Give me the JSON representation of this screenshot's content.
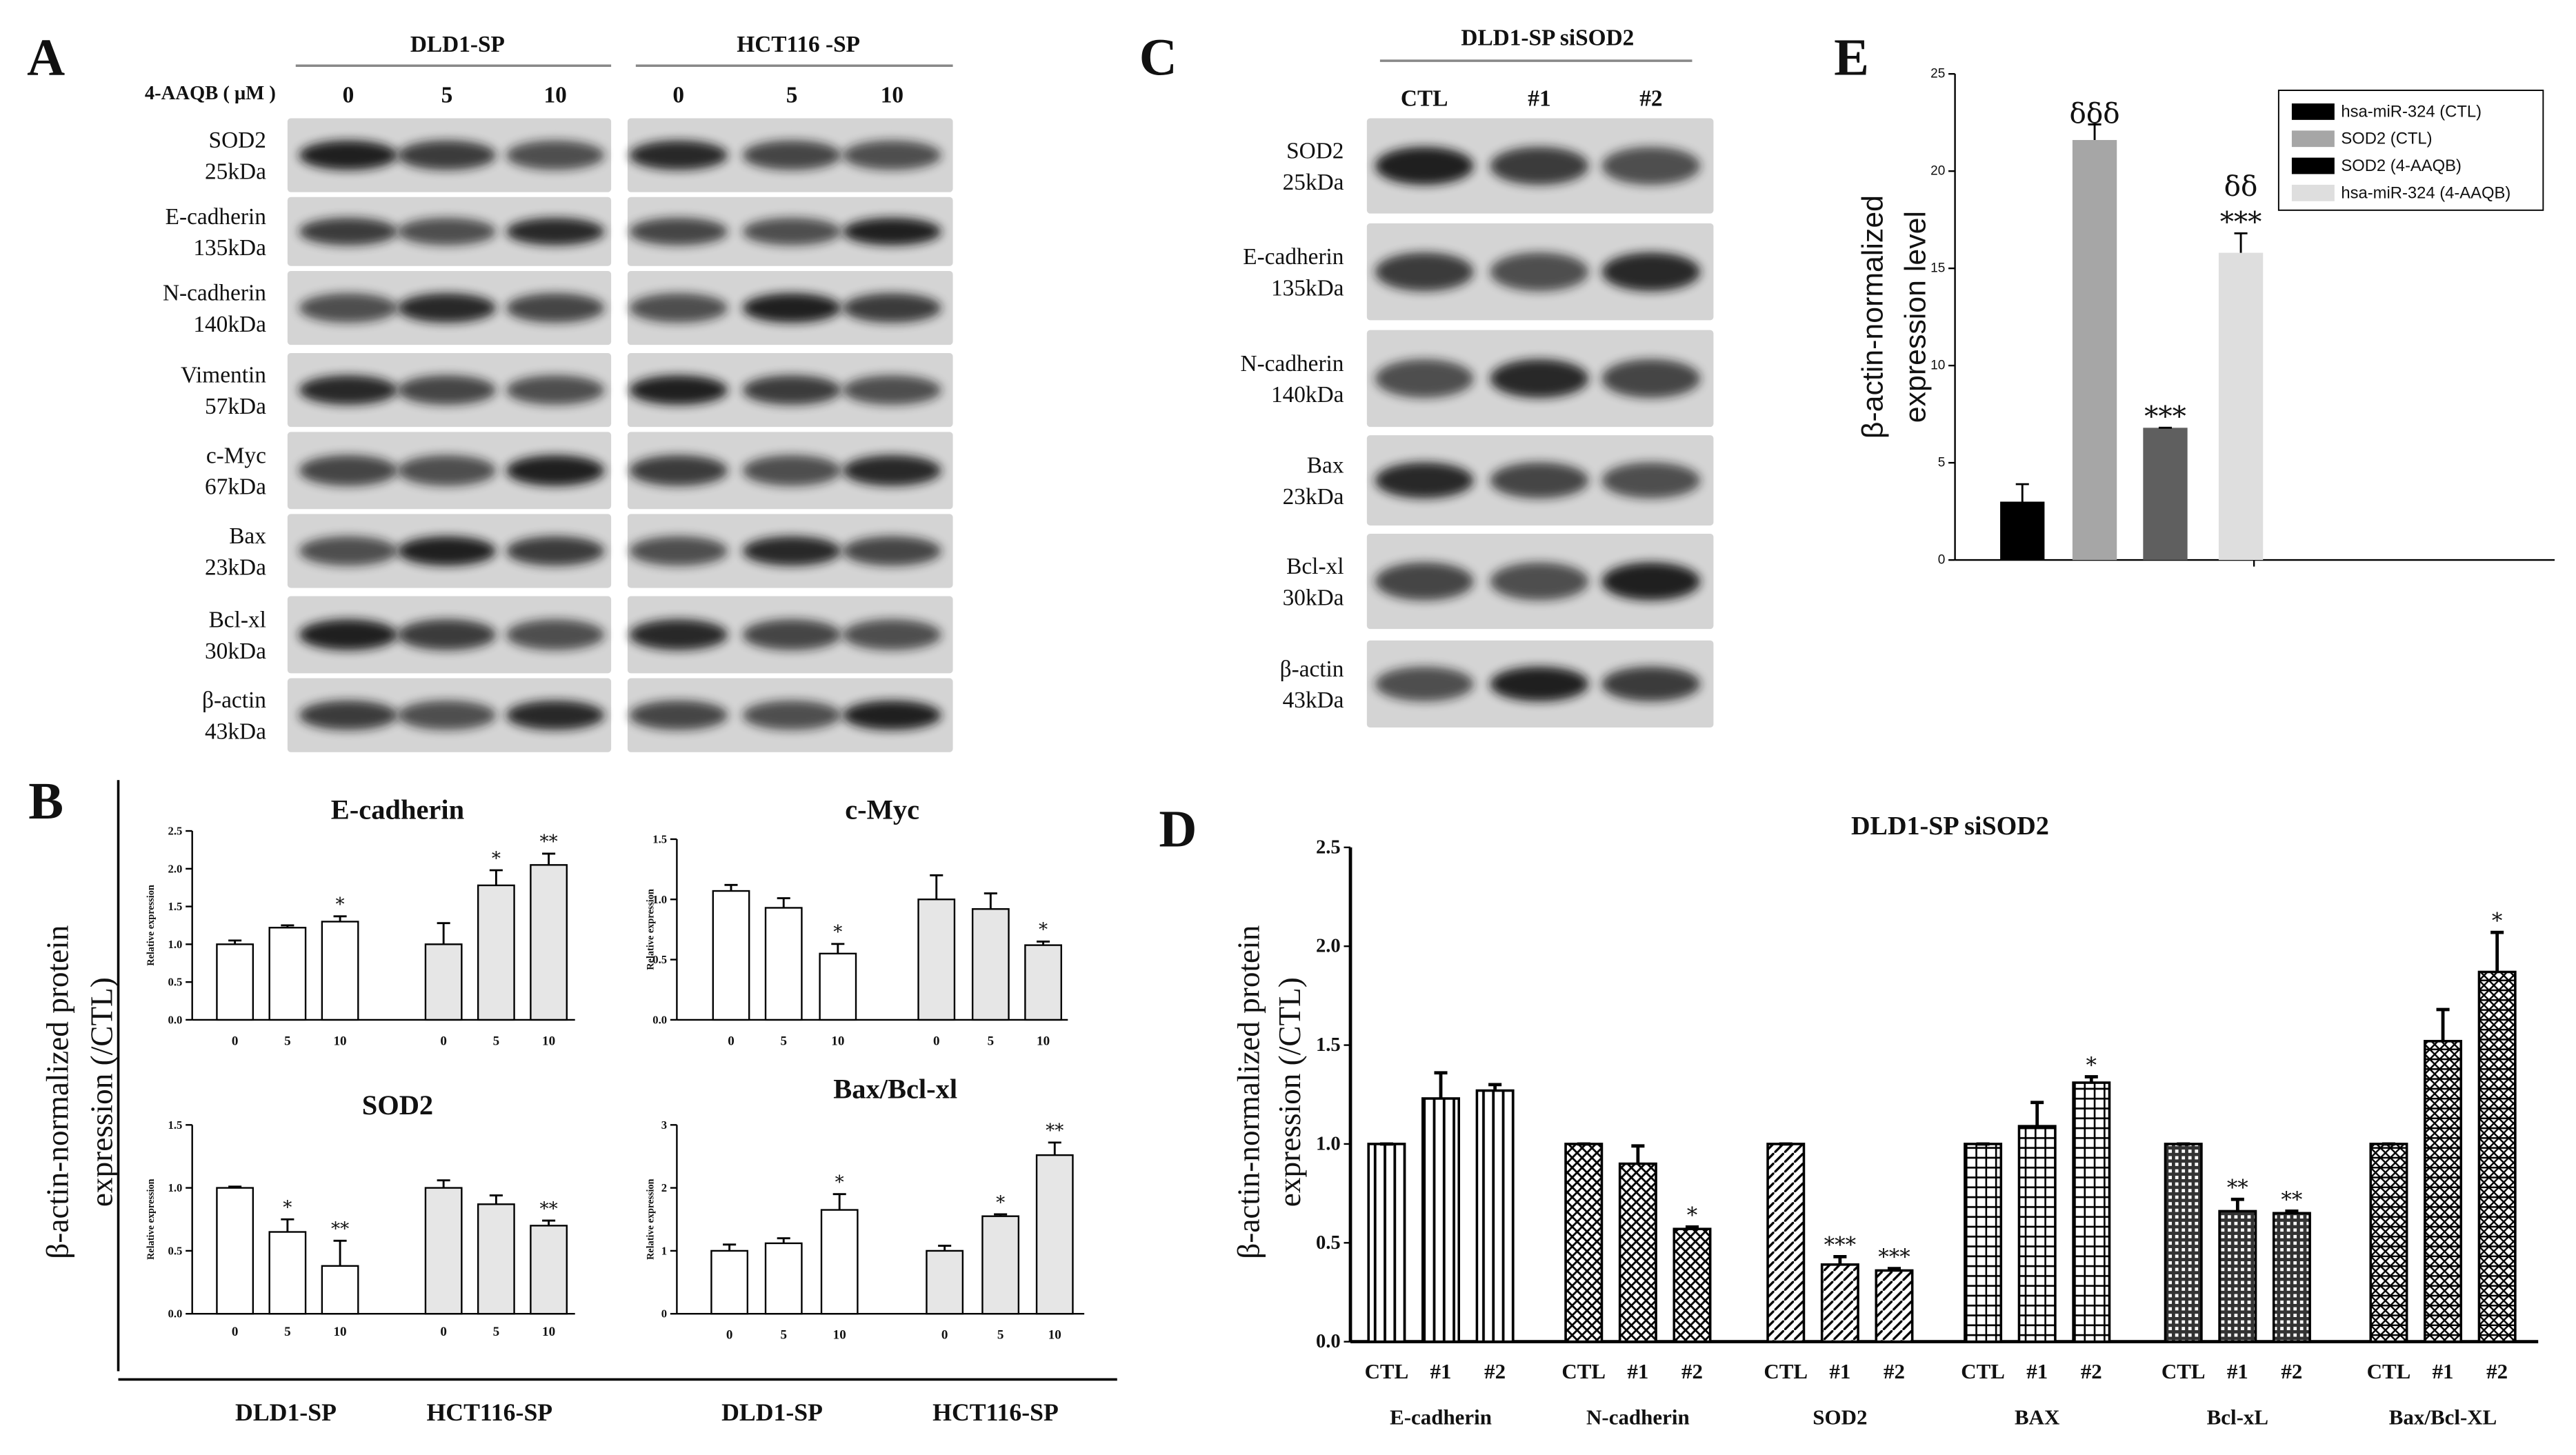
{
  "figure": {
    "panel_labels": [
      "A",
      "B",
      "C",
      "D",
      "E"
    ],
    "panel_B_ylabel": [
      "β-actin-normalized protein",
      "expression (/CTL)"
    ]
  },
  "blots": [
    {
      "groups": [
        "DLD1-SP",
        "HCT116 -SP"
      ],
      "treatment": "4-AAQB ( μM )",
      "lanes": [
        "0",
        "5",
        "10",
        "0",
        "5",
        "10"
      ],
      "rows": [
        {
          "protein": "SOD2",
          "size": "25kDa"
        },
        {
          "protein": "E-cadherin",
          "size": "135kDa"
        },
        {
          "protein": "N-cadherin",
          "size": "140kDa"
        },
        {
          "protein": "Vimentin",
          "size": "57kDa"
        },
        {
          "protein": "c-Myc",
          "size": "67kDa"
        },
        {
          "protein": "Bax",
          "size": "23kDa"
        },
        {
          "protein": "Bcl-xl",
          "size": "30kDa"
        },
        {
          "protein": "β-actin",
          "size": "43kDa"
        }
      ]
    },
    {
      "title": "DLD1-SP siSOD2",
      "lanes": [
        "CTL",
        "#1",
        "#2"
      ],
      "rows": [
        {
          "protein": "SOD2",
          "size": "25kDa"
        },
        {
          "protein": "E-cadherin",
          "size": "135kDa"
        },
        {
          "protein": "N-cadherin",
          "size": "140kDa"
        },
        {
          "protein": "Bax",
          "size": "23kDa"
        },
        {
          "protein": "Bcl-xl",
          "size": "30kDa"
        },
        {
          "protein": "β-actin",
          "size": "43kDa"
        }
      ]
    }
  ],
  "chart_data": [
    {
      "type": "bar",
      "title": "E-cadherin",
      "ylabel": "Relative expression",
      "categories": [
        "0",
        "5",
        "10"
      ],
      "series": [
        {
          "color": "#ffffff",
          "values": [
            1.0,
            1.22,
            1.3
          ],
          "errors": [
            0.05,
            0.03,
            0.07
          ],
          "significance": [
            null,
            null,
            "*"
          ]
        },
        {
          "color": "#e6e6e6",
          "values": [
            1.0,
            1.78,
            2.05
          ],
          "errors": [
            0.28,
            0.2,
            0.15
          ],
          "significance": [
            null,
            "*",
            "**"
          ]
        }
      ],
      "ylim": [
        0,
        2.5
      ],
      "yticks": [
        {
          "value": 0,
          "label": "0.0"
        },
        0.5,
        {
          "value": 1,
          "label": "1.0"
        },
        1.5,
        {
          "value": 2,
          "label": "2.0"
        },
        2.5
      ]
    },
    {
      "type": "bar",
      "title": "c-Myc",
      "ylabel": "Relative expression",
      "categories": [
        "0",
        "5",
        "10"
      ],
      "series": [
        {
          "color": "#ffffff",
          "values": [
            1.07,
            0.93,
            0.55
          ],
          "errors": [
            0.05,
            0.08,
            0.08
          ],
          "significance": [
            null,
            null,
            "*"
          ]
        },
        {
          "color": "#e6e6e6",
          "values": [
            1.0,
            0.92,
            0.62
          ],
          "errors": [
            0.2,
            0.13,
            0.03
          ],
          "significance": [
            null,
            null,
            "*"
          ]
        }
      ],
      "ylim": [
        0,
        1.5
      ],
      "yticks": [
        {
          "value": 0,
          "label": "0.0"
        },
        0.5,
        {
          "value": 1,
          "label": "1.0"
        },
        1.5
      ]
    },
    {
      "type": "bar",
      "title": "SOD2",
      "ylabel": "Relative expression",
      "categories": [
        "0",
        "5",
        "10"
      ],
      "series": [
        {
          "name": "DLD1-SP",
          "color": "#ffffff",
          "values": [
            1.0,
            0.65,
            0.38
          ],
          "errors": [
            0.01,
            0.1,
            0.2
          ],
          "significance": [
            null,
            "*",
            "**"
          ]
        },
        {
          "name": "HCT116-SP",
          "color": "#e6e6e6",
          "values": [
            1.0,
            0.87,
            0.7
          ],
          "errors": [
            0.06,
            0.07,
            0.04
          ],
          "significance": [
            null,
            null,
            "**"
          ]
        }
      ],
      "ylim": [
        0,
        1.5
      ],
      "yticks": [
        {
          "value": 0,
          "label": "0.0"
        },
        0.5,
        {
          "value": 1,
          "label": "1.0"
        },
        1.5
      ]
    },
    {
      "type": "bar",
      "title": "Bax/Bcl-xl",
      "ylabel": "Relative expression",
      "categories": [
        "0",
        "5",
        "10"
      ],
      "series": [
        {
          "name": "DLD1-SP",
          "color": "#ffffff",
          "values": [
            1.0,
            1.12,
            1.65
          ],
          "errors": [
            0.1,
            0.08,
            0.25
          ],
          "significance": [
            null,
            null,
            "*"
          ]
        },
        {
          "name": "HCT116-SP",
          "color": "#e6e6e6",
          "values": [
            1.0,
            1.55,
            2.52
          ],
          "errors": [
            0.08,
            0.03,
            0.2
          ],
          "significance": [
            null,
            "*",
            "**"
          ]
        }
      ],
      "ylim": [
        0,
        3
      ],
      "yticks": [
        0,
        1,
        2,
        3
      ]
    },
    {
      "type": "bar",
      "title": "DLD1-SP siSOD2",
      "ylabel": [
        "β-actin-normalized protein",
        "expression (/CTL)"
      ],
      "categories": [
        "E-cadherin",
        "N-cadherin",
        "SOD2",
        "BAX",
        "Bcl-xL",
        "Bax/Bcl-XL"
      ],
      "series": [
        {
          "name": "CTL",
          "color": "#000000",
          "values": [
            1.0,
            1.0,
            1.0,
            1.0,
            1.0,
            1.0
          ],
          "errors": [
            0,
            0,
            0,
            0,
            0,
            0
          ],
          "significance": [
            null,
            null,
            null,
            null,
            null,
            null
          ]
        },
        {
          "name": "#1",
          "color": "#000000",
          "values": [
            1.23,
            0.9,
            0.39,
            1.09,
            0.66,
            1.52
          ],
          "errors": [
            0.13,
            0.09,
            0.04,
            0.12,
            0.06,
            0.16
          ],
          "significance": [
            null,
            null,
            "***",
            null,
            "**",
            null
          ]
        },
        {
          "name": "#2",
          "color": "#000000",
          "values": [
            1.27,
            0.57,
            0.36,
            1.31,
            0.65,
            1.87
          ],
          "errors": [
            0.03,
            0.01,
            0.01,
            0.03,
            0.01,
            0.2
          ],
          "significance": [
            null,
            "*",
            "***",
            "*",
            "**",
            "*"
          ]
        }
      ],
      "ylim": [
        0,
        2.5
      ],
      "yticks": [
        {
          "value": 0,
          "label": "0.0"
        },
        0.5,
        {
          "value": 1,
          "label": "1.0"
        },
        1.5,
        {
          "value": 2,
          "label": "2.0"
        },
        2.5
      ]
    },
    {
      "type": "bar",
      "ylabel": [
        "β-actin-normalized",
        "expression level"
      ],
      "legend": "top-right",
      "series": [
        {
          "name": "hsa-miR-324 (CTL)",
          "color": "#000000",
          "values": [
            3.0
          ],
          "errors": [
            0.9
          ],
          "significance": [
            null
          ]
        },
        {
          "name": "SOD2 (CTL)",
          "color": "#a6a6a6",
          "values": [
            21.6
          ],
          "errors": [
            0.8
          ],
          "significance": [
            [
              "δδδ"
            ]
          ]
        },
        {
          "name": "SOD2 (4-AAQB)",
          "color": "#5f5f5f",
          "values": [
            6.8
          ],
          "errors": [
            0
          ],
          "significance": [
            [
              "***"
            ]
          ]
        },
        {
          "name": "hsa-miR-324 (4-AAQB)",
          "color": "#dedede",
          "values": [
            15.8
          ],
          "errors": [
            1.0
          ],
          "significance": [
            [
              "***",
              "δδ"
            ]
          ]
        }
      ],
      "ylim": [
        0,
        25
      ],
      "yticks": [
        0,
        5,
        10,
        15,
        20,
        25
      ]
    }
  ]
}
